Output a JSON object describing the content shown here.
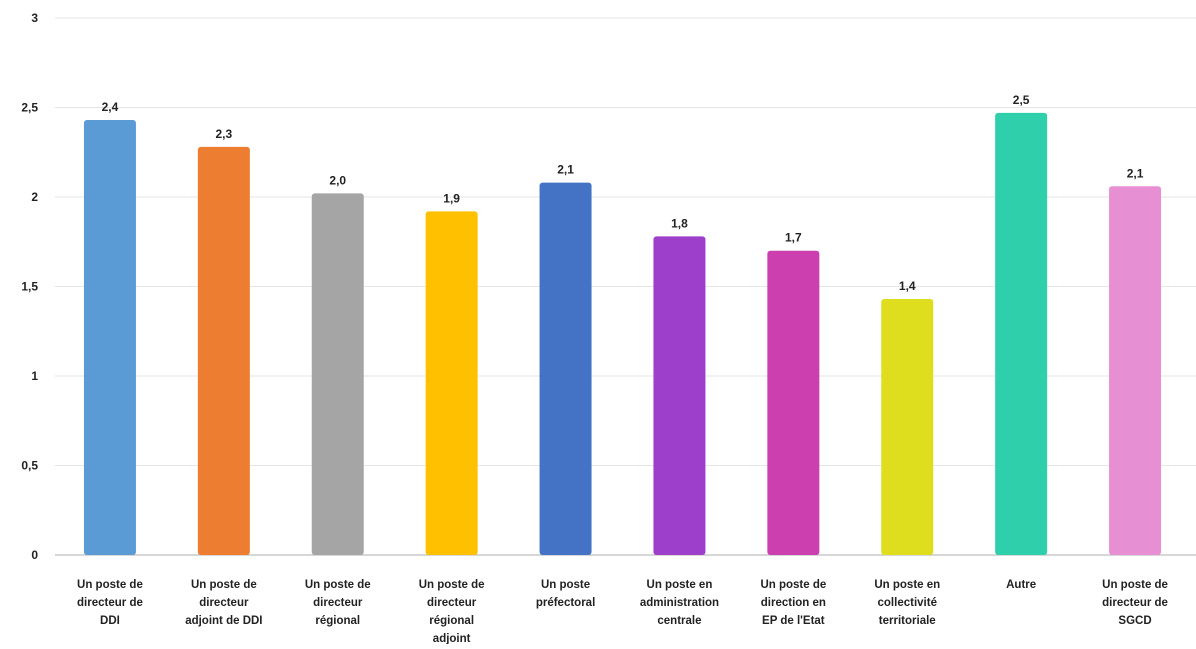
{
  "chart_data": {
    "type": "bar",
    "ylim": [
      0,
      3
    ],
    "yticks": [
      {
        "value": 0,
        "label": "0"
      },
      {
        "value": 0.5,
        "label": "0,5"
      },
      {
        "value": 1,
        "label": "1"
      },
      {
        "value": 1.5,
        "label": "1,5"
      },
      {
        "value": 2,
        "label": "2"
      },
      {
        "value": 2.5,
        "label": "2,5"
      },
      {
        "value": 3,
        "label": "3"
      }
    ],
    "grid": true,
    "legend": "none",
    "categories": [
      {
        "lines": [
          "Un poste de",
          "directeur de",
          "DDI"
        ]
      },
      {
        "lines": [
          "Un poste de",
          "directeur",
          "adjoint de DDI"
        ]
      },
      {
        "lines": [
          "Un poste de",
          "directeur",
          "régional"
        ]
      },
      {
        "lines": [
          "Un poste de",
          "directeur",
          "régional",
          "adjoint"
        ]
      },
      {
        "lines": [
          "Un poste",
          "préfectoral"
        ]
      },
      {
        "lines": [
          "Un poste en",
          "administration",
          "centrale"
        ]
      },
      {
        "lines": [
          "Un poste de",
          "direction en",
          "EP de l'Etat"
        ]
      },
      {
        "lines": [
          "Un poste en",
          "collectivité",
          "territoriale"
        ]
      },
      {
        "lines": [
          "Autre"
        ]
      },
      {
        "lines": [
          "Un poste de",
          "directeur de",
          "SGCD"
        ]
      }
    ],
    "values": [
      2.43,
      2.28,
      2.02,
      1.92,
      2.08,
      1.78,
      1.7,
      1.43,
      2.47,
      2.06
    ],
    "data_labels": [
      "2,4",
      "2,3",
      "2,0",
      "1,9",
      "2,1",
      "1,8",
      "1,7",
      "1,4",
      "2,5",
      "2,1"
    ],
    "colors": [
      "#5b9bd5",
      "#ed7d31",
      "#a5a5a5",
      "#ffc000",
      "#4472c4",
      "#9e3fcc",
      "#cc3fae",
      "#dede1e",
      "#2ecfaa",
      "#e78fd3"
    ]
  }
}
